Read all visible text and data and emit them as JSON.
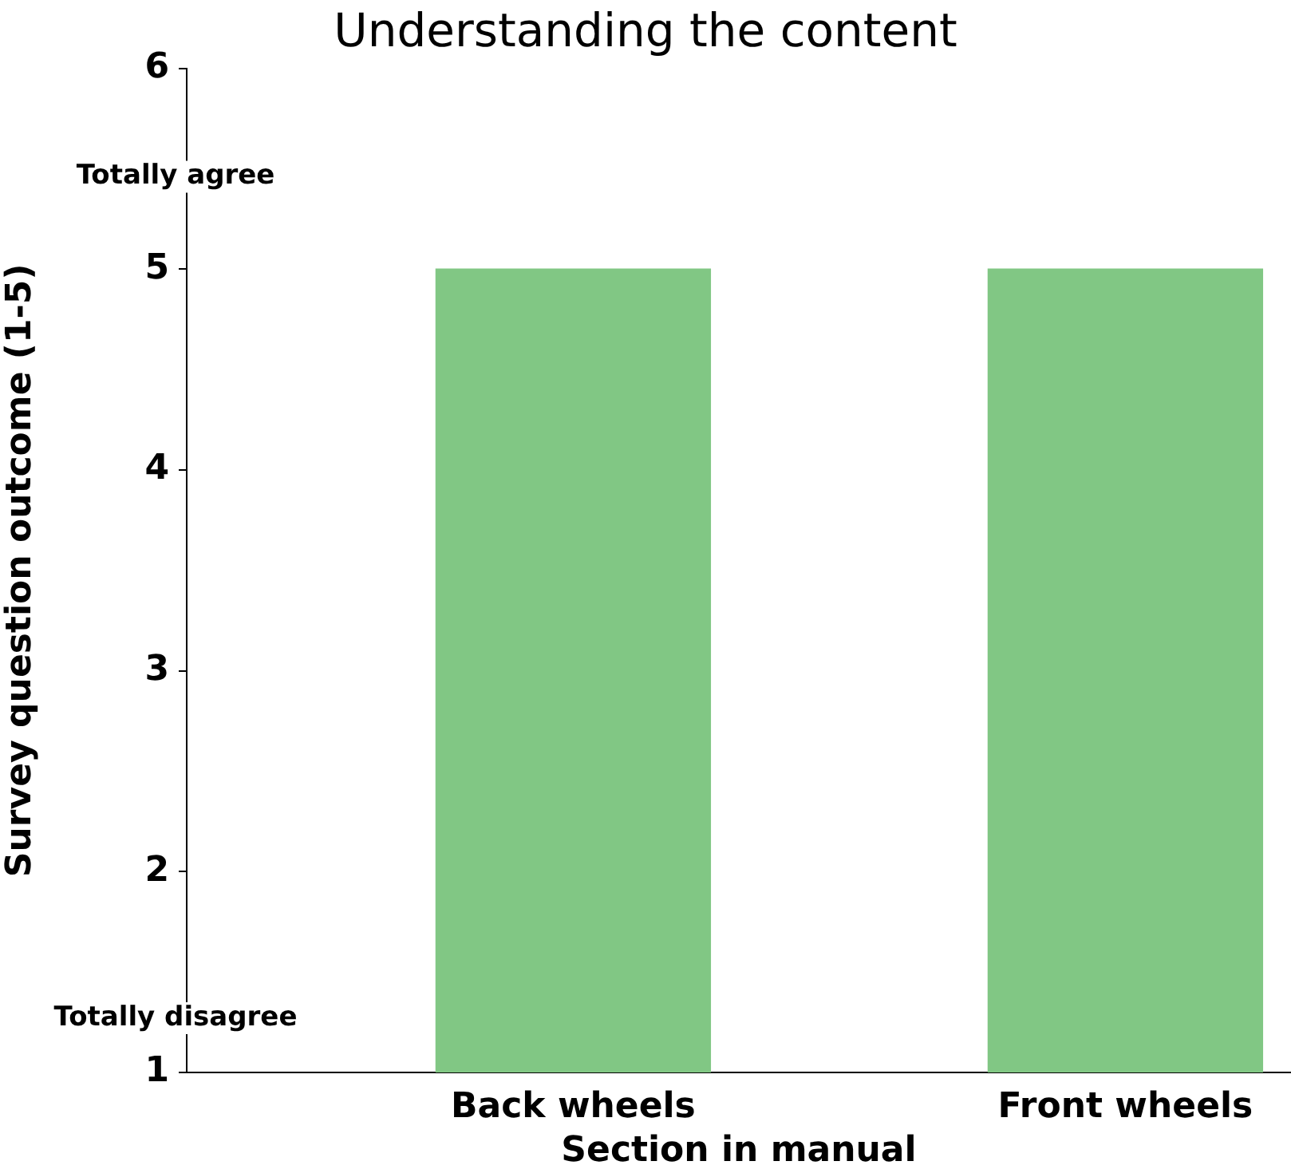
{
  "chart_data": {
    "type": "bar",
    "title": "Understanding the content",
    "xlabel": "Section in manual",
    "ylabel": "Survey question outcome (1-5)",
    "categories": [
      "Back wheels",
      "Front wheels"
    ],
    "values": [
      5,
      5
    ],
    "color": "#81c784",
    "ylim": [
      1,
      6
    ],
    "yticks": [
      1,
      2,
      3,
      4,
      5,
      6
    ],
    "grid": false,
    "legend": false,
    "annotations": [
      "Totally agree",
      "Totally disagree"
    ]
  }
}
